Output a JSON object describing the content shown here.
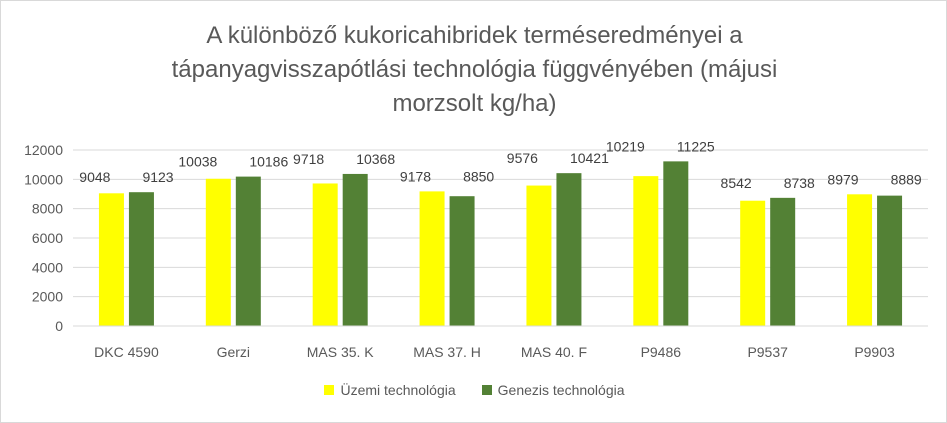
{
  "chart_data": {
    "type": "bar",
    "title": "A különböző kukoricahibridek terméseredményei a tápanyagvisszapótlási technológia függvényében (májusi morzsolt kg/ha)",
    "categories": [
      "DKC 4590",
      "Gerzi",
      "MAS 35. K",
      "MAS 37. H",
      "MAS 40. F",
      "P9486",
      "P9537",
      "P9903"
    ],
    "series": [
      {
        "name": "Üzemi technológia",
        "color": "#ffff00",
        "values": [
          9048,
          10038,
          9718,
          9178,
          9576,
          10219,
          8542,
          8979
        ]
      },
      {
        "name": "Genezis technológia",
        "color": "#538135",
        "values": [
          9123,
          10186,
          10368,
          8850,
          10421,
          11225,
          8738,
          8889
        ]
      }
    ],
    "ylim": [
      0,
      12000
    ],
    "yticks": [
      "0",
      "2000",
      "4000",
      "6000",
      "8000",
      "10000",
      "12000"
    ],
    "grid": true,
    "legend_position": "bottom"
  }
}
